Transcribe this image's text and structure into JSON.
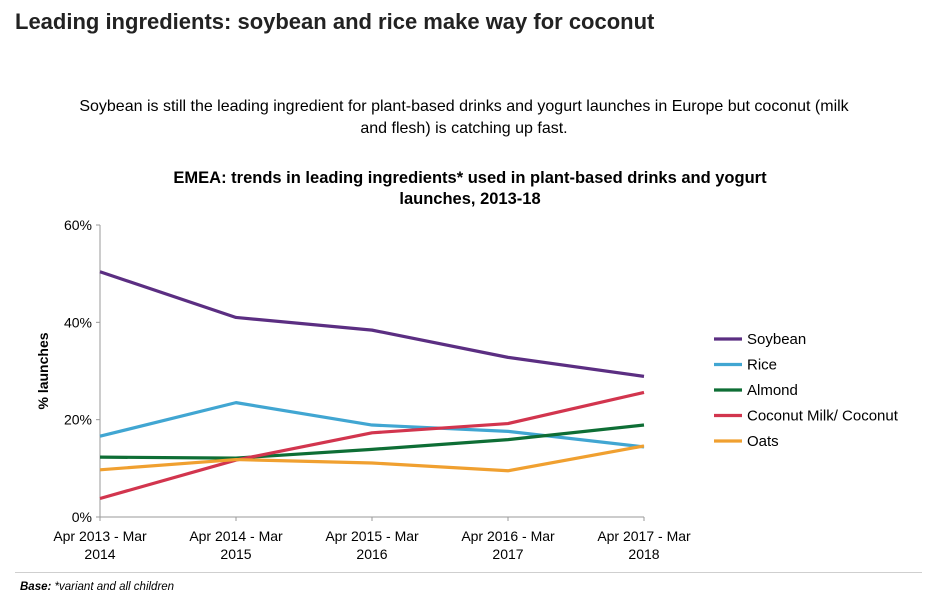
{
  "header": {
    "title": "Leading ingredients: soybean and rice make way for coconut",
    "subtitle_line1": "Soybean is still the leading ingredient for plant-based drinks and yogurt launches in Europe but coconut (milk",
    "subtitle_line2": "and flesh) is catching up fast."
  },
  "chart_data": {
    "type": "line",
    "title_line1": "EMEA: trends in leading ingredients* used in plant-based drinks and yogurt",
    "title_line2": "launches, 2013-18",
    "ylabel": "% launches",
    "xlabel": "",
    "ylim": [
      0,
      60
    ],
    "yticks": [
      {
        "value": 0,
        "label": "0%"
      },
      {
        "value": 20,
        "label": "20%"
      },
      {
        "value": 40,
        "label": "40%"
      },
      {
        "value": 60,
        "label": "60%"
      }
    ],
    "categories": [
      [
        "Apr 2013 - Mar",
        "2014"
      ],
      [
        "Apr 2014 - Mar",
        "2015"
      ],
      [
        "Apr 2015 - Mar",
        "2016"
      ],
      [
        "Apr 2016 - Mar",
        "2017"
      ],
      [
        "Apr 2017 - Mar",
        "2018"
      ]
    ],
    "legend_position": "right",
    "grid": false,
    "series": [
      {
        "name": "Soybean",
        "color": "#5b2e82",
        "values": [
          50.4,
          41.0,
          38.4,
          32.8,
          28.9
        ]
      },
      {
        "name": "Rice",
        "color": "#41a6d2",
        "values": [
          16.6,
          23.5,
          18.9,
          17.6,
          14.4
        ]
      },
      {
        "name": "Almond",
        "color": "#0e6e35",
        "values": [
          12.3,
          12.1,
          13.9,
          15.9,
          18.9
        ]
      },
      {
        "name": "Coconut Milk/ Coconut",
        "color": "#d2354e",
        "values": [
          3.8,
          11.7,
          17.3,
          19.2,
          25.6
        ]
      },
      {
        "name": "Oats",
        "color": "#f0a030",
        "values": [
          9.7,
          11.8,
          11.1,
          9.5,
          14.6
        ]
      }
    ]
  },
  "footer": {
    "base_label": "Base:",
    "base_text": "*variant and all children"
  }
}
